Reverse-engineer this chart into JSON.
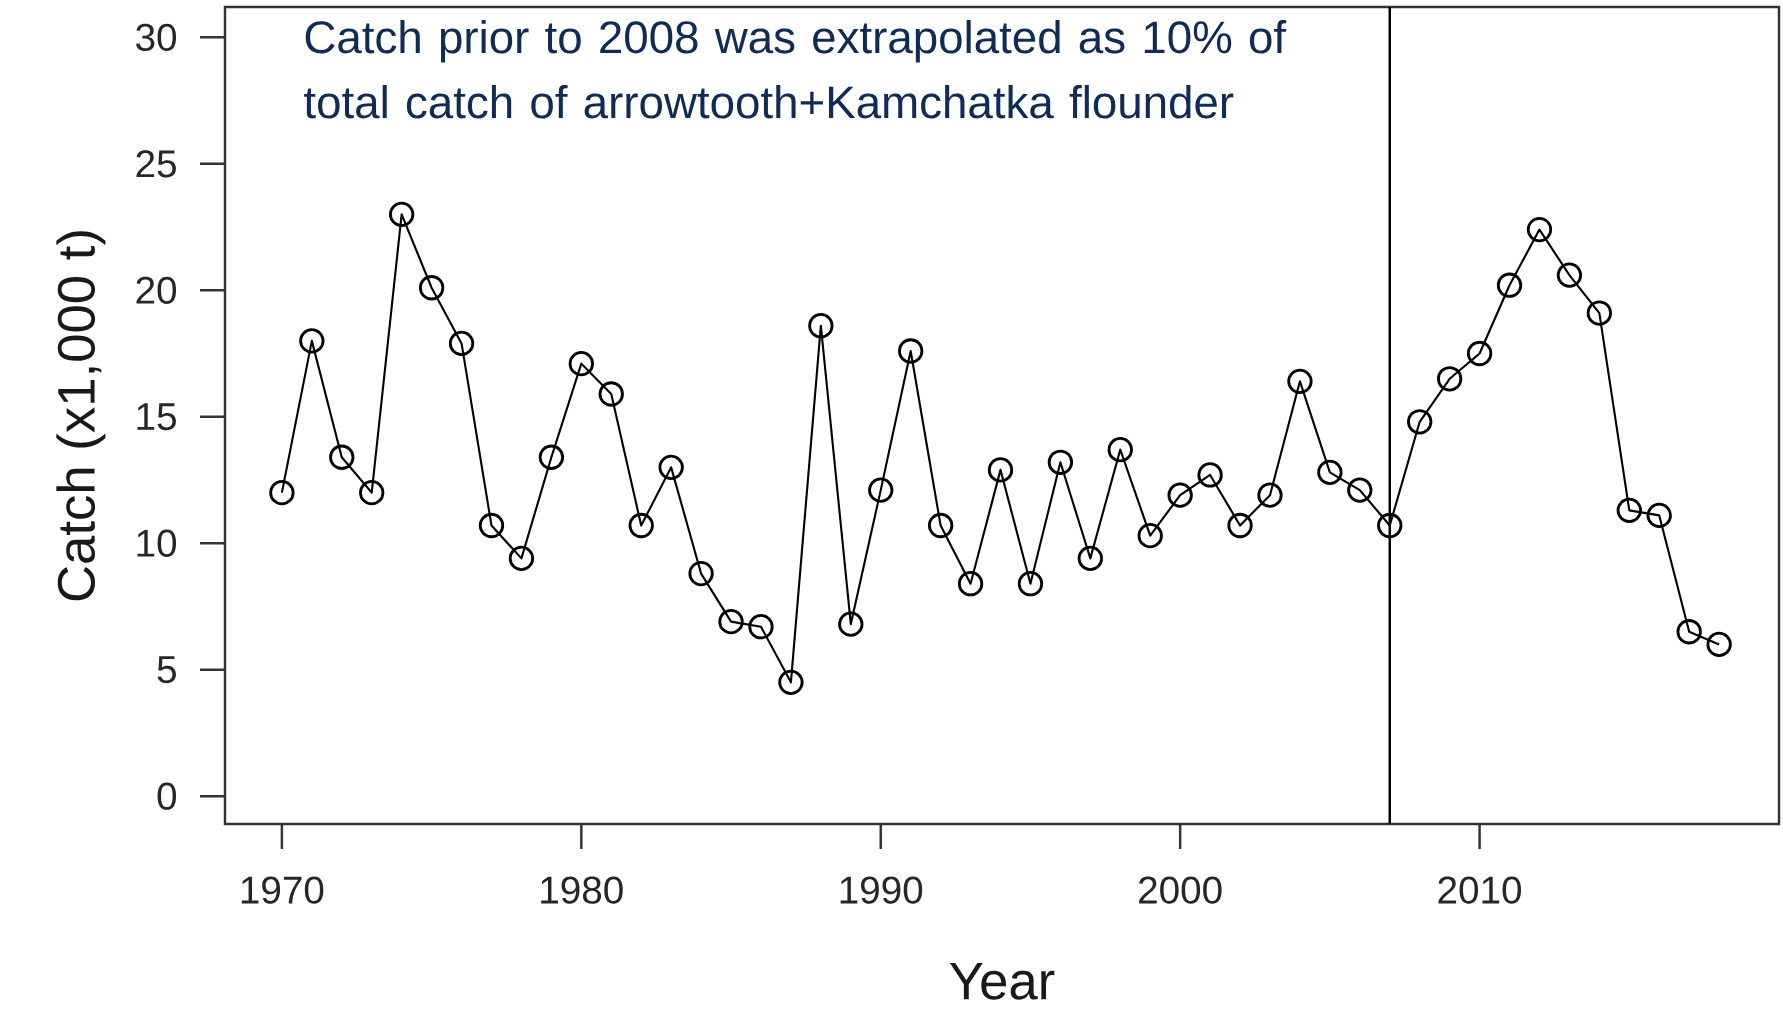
{
  "chart_data": {
    "type": "line",
    "xlabel": "Year",
    "ylabel": "Catch (x1,000 t)",
    "annotations": [
      "Catch prior to 2008 was extrapolated as 10% of total catch of arrowtooth+Kamchatka flounder"
    ],
    "x": [
      1970,
      1971,
      1972,
      1973,
      1974,
      1975,
      1976,
      1977,
      1978,
      1979,
      1980,
      1981,
      1982,
      1983,
      1984,
      1985,
      1986,
      1987,
      1988,
      1989,
      1990,
      1991,
      1992,
      1993,
      1994,
      1995,
      1996,
      1997,
      1998,
      1999,
      2000,
      2001,
      2002,
      2003,
      2004,
      2005,
      2006,
      2007,
      2008,
      2009,
      2010,
      2011,
      2012,
      2013,
      2014,
      2015,
      2016,
      2017,
      2018
    ],
    "series": [
      {
        "color": "#000000",
        "values": [
          12.0,
          18.0,
          13.4,
          12.0,
          23.0,
          20.1,
          17.9,
          10.7,
          9.4,
          13.4,
          17.1,
          15.9,
          10.7,
          13.0,
          8.8,
          6.9,
          6.7,
          4.5,
          18.6,
          6.8,
          12.1,
          17.6,
          10.7,
          8.4,
          12.9,
          8.4,
          13.2,
          9.4,
          13.7,
          10.3,
          11.9,
          12.7,
          10.7,
          11.9,
          16.4,
          12.8,
          12.1,
          10.7,
          14.8,
          16.5,
          17.5,
          20.2,
          22.4,
          20.6,
          19.1,
          11.3,
          11.1,
          6.5,
          6.0
        ]
      }
    ],
    "xlim": [
      1968.1,
      2020
    ],
    "ylim": [
      -1.1,
      31.2
    ],
    "xticks": [
      1970,
      1980,
      1990,
      2000,
      2010
    ],
    "yticks": [
      0,
      5,
      10,
      15,
      20,
      25,
      30
    ],
    "ref_lines": [
      {
        "axis": "x",
        "value": 2007,
        "color": "#000000"
      }
    ],
    "marker": "circle",
    "line_style": "solid"
  }
}
